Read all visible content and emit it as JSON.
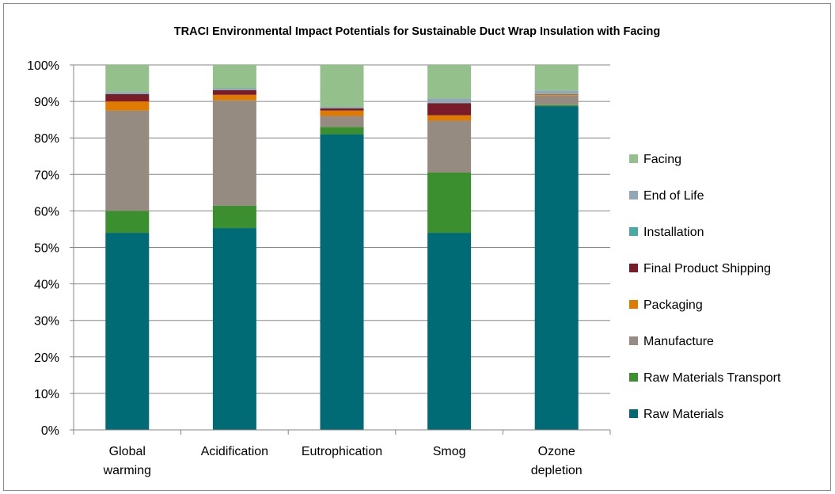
{
  "chart_data": {
    "type": "bar",
    "stacked": true,
    "title": "TRACI Environmental Impact Potentials for Sustainable Duct Wrap Insulation with Facing",
    "xlabel": "",
    "ylabel": "",
    "ylim": [
      0,
      100
    ],
    "y_ticks": [
      "0%",
      "10%",
      "20%",
      "30%",
      "40%",
      "50%",
      "60%",
      "70%",
      "80%",
      "90%",
      "100%"
    ],
    "categories": [
      [
        "Global",
        "warming"
      ],
      [
        "Acidification"
      ],
      [
        "Eutrophication"
      ],
      [
        "Smog"
      ],
      [
        "Ozone",
        "depletion"
      ]
    ],
    "legend_position": "right",
    "grid": true,
    "series": [
      {
        "name": "Raw Materials",
        "color": "#006a75",
        "values": [
          54,
          55.3,
          81,
          54,
          88.7
        ]
      },
      {
        "name": "Raw Materials Transport",
        "color": "#3b8f2f",
        "values": [
          6,
          6.1,
          2,
          16.5,
          0.3
        ]
      },
      {
        "name": "Manufacture",
        "color": "#968b80",
        "values": [
          27.5,
          28.9,
          3,
          14.2,
          2.6
        ]
      },
      {
        "name": "Packaging",
        "color": "#df7a00",
        "values": [
          2.5,
          1.5,
          1.5,
          1.5,
          0.3
        ]
      },
      {
        "name": "Final Product Shipping",
        "color": "#7a1b2a",
        "values": [
          2,
          1.3,
          0.6,
          3.3,
          0.1
        ]
      },
      {
        "name": "Installation",
        "color": "#48aaa6",
        "values": [
          0.1,
          0.1,
          0.1,
          0.1,
          0.1
        ]
      },
      {
        "name": "End of Life",
        "color": "#8fa7b6",
        "values": [
          0.5,
          0.4,
          0.3,
          1.2,
          0.9
        ]
      },
      {
        "name": "Facing",
        "color": "#94c08c",
        "values": [
          7.4,
          6.4,
          11.5,
          9.2,
          7
        ]
      }
    ]
  }
}
